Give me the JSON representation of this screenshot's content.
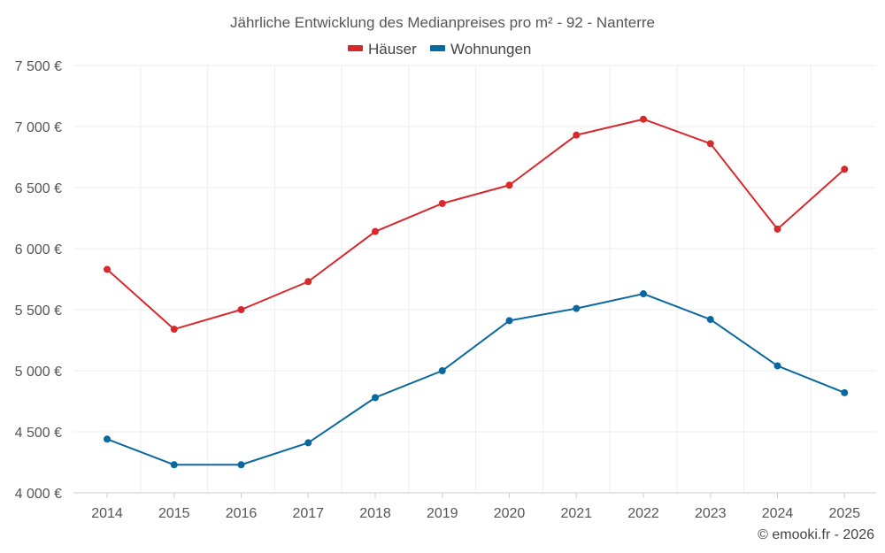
{
  "chart_data": {
    "type": "line",
    "title": "Jährliche Entwicklung des Medianpreises pro m² - 92 - Nanterre",
    "categories": [
      "2014",
      "2015",
      "2016",
      "2017",
      "2018",
      "2019",
      "2020",
      "2021",
      "2022",
      "2023",
      "2024",
      "2025"
    ],
    "ylim": [
      4000,
      7500
    ],
    "yticks": [
      4000,
      4500,
      5000,
      5500,
      6000,
      6500,
      7000,
      7500
    ],
    "ytick_labels": [
      "4 000 €",
      "4 500 €",
      "5 000 €",
      "5 500 €",
      "6 000 €",
      "6 500 €",
      "7 000 €",
      "7 500 €"
    ],
    "legend_position": "top-center",
    "grid": true,
    "series": [
      {
        "name": "Häuser",
        "color": "#d7282b",
        "values": [
          5830,
          5340,
          5500,
          5730,
          6140,
          6370,
          6520,
          6930,
          7060,
          6860,
          6160,
          6650
        ]
      },
      {
        "name": "Wohnungen",
        "color": "#0a68a0",
        "values": [
          4440,
          4230,
          4230,
          4410,
          4780,
          5000,
          5410,
          5510,
          5630,
          5420,
          5040,
          4820
        ]
      }
    ]
  },
  "credit": "© emooki.fr - 2026"
}
